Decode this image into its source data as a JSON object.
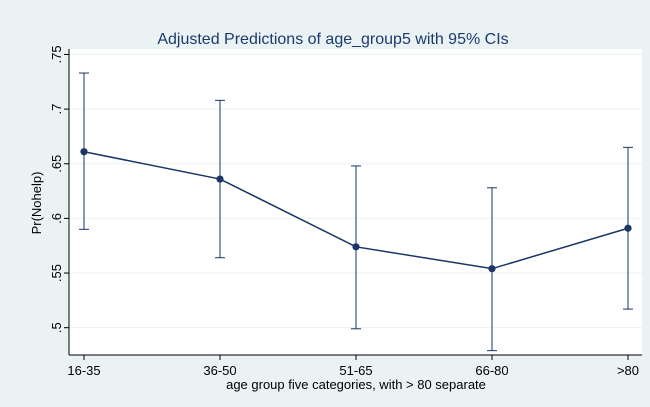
{
  "chart_data": {
    "type": "line",
    "title": "Adjusted Predictions of age_group5 with 95% CIs",
    "xlabel": "age group five categories, with > 80 separate",
    "ylabel": "Pr(Nohelp)",
    "categories": [
      "16-35",
      "36-50",
      "51-65",
      "66-80",
      ">80"
    ],
    "series": [
      {
        "values": [
          0.661,
          0.636,
          0.574,
          0.554,
          0.591
        ],
        "ci_low": [
          0.59,
          0.564,
          0.499,
          0.479,
          0.517
        ],
        "ci_high": [
          0.733,
          0.708,
          0.648,
          0.628,
          0.665
        ]
      }
    ],
    "ylim": [
      0.475,
      0.755
    ],
    "yticks": [
      0.5,
      0.55,
      0.6,
      0.65,
      0.7,
      0.75
    ],
    "ytick_labels": [
      ".5",
      ".55",
      ".6",
      ".65",
      ".7",
      ".75"
    ],
    "grid": "horizontal",
    "colors": {
      "outer_background": "#eaf2f3",
      "plot_background": "#ffffff",
      "grid": "#eaf2f3",
      "series": "#1a3566",
      "title": "#1c3a6e"
    }
  }
}
